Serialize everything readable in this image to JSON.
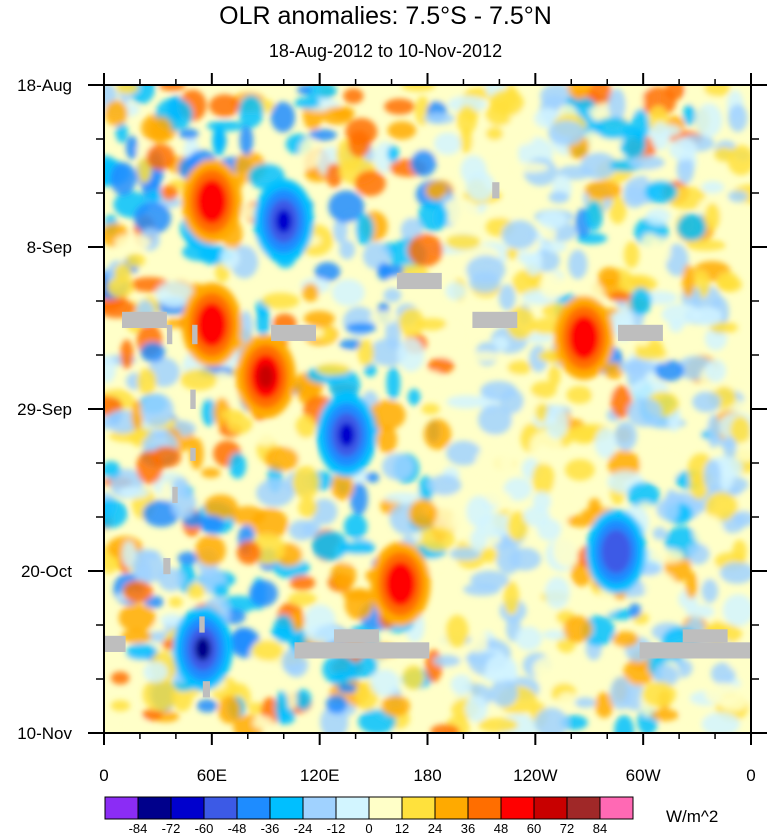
{
  "chart_data": {
    "type": "heatmap",
    "title": "OLR anomalies: 7.5°S - 7.5°N",
    "subtitle": "18-Aug-2012 to 10-Nov-2012",
    "xlabel": "",
    "ylabel": "",
    "x_ticks": [
      "0",
      "60E",
      "120E",
      "180",
      "120W",
      "60W",
      "0"
    ],
    "x_range_deg_east": [
      0,
      360
    ],
    "y_ticks": [
      "18-Aug",
      "8-Sep",
      "29-Sep",
      "20-Oct",
      "10-Nov"
    ],
    "y_range": [
      "18-Aug-2012",
      "10-Nov-2012"
    ],
    "colorbar": {
      "unit": "W/m^2",
      "levels": [
        -84,
        -72,
        -60,
        -48,
        -36,
        -24,
        -12,
        0,
        12,
        24,
        36,
        48,
        60,
        72,
        84
      ],
      "level_labels": [
        "-84",
        "-72",
        "-60",
        "-48",
        "-36",
        "-24",
        "-12",
        "0",
        "12",
        "24",
        "36",
        "48",
        "60",
        "72",
        "84"
      ],
      "colors": [
        "#8b2cf5",
        "#00008b",
        "#0000cd",
        "#3c5ae6",
        "#1e8cff",
        "#00bfff",
        "#a0d2ff",
        "#d2f5ff",
        "#ffffc8",
        "#ffe13c",
        "#ffaa00",
        "#ff6e00",
        "#ff0000",
        "#c80000",
        "#a02828",
        "#ff69b4"
      ]
    },
    "missing_color": "#bebebe",
    "features": [
      {
        "desc": "strong positive anomaly",
        "lon": 90,
        "date_frac": 0.45,
        "value": 60
      },
      {
        "desc": "strong positive anomaly",
        "lon": 60,
        "date_frac": 0.37,
        "value": 48
      },
      {
        "desc": "strong positive anomaly",
        "lon": 60,
        "date_frac": 0.18,
        "value": 48
      },
      {
        "desc": "strong negative anomaly",
        "lon": 100,
        "date_frac": 0.21,
        "value": -60
      },
      {
        "desc": "strong negative anomaly",
        "lon": 55,
        "date_frac": 0.87,
        "value": -72
      },
      {
        "desc": "strong negative anomaly",
        "lon": 135,
        "date_frac": 0.54,
        "value": -60
      },
      {
        "desc": "strong negative anomaly",
        "lon": 285,
        "date_frac": 0.72,
        "value": -48
      },
      {
        "desc": "positive anomaly",
        "lon": 267,
        "date_frac": 0.39,
        "value": 48
      },
      {
        "desc": "positive anomaly",
        "lon": 165,
        "date_frac": 0.77,
        "value": 48
      }
    ]
  }
}
